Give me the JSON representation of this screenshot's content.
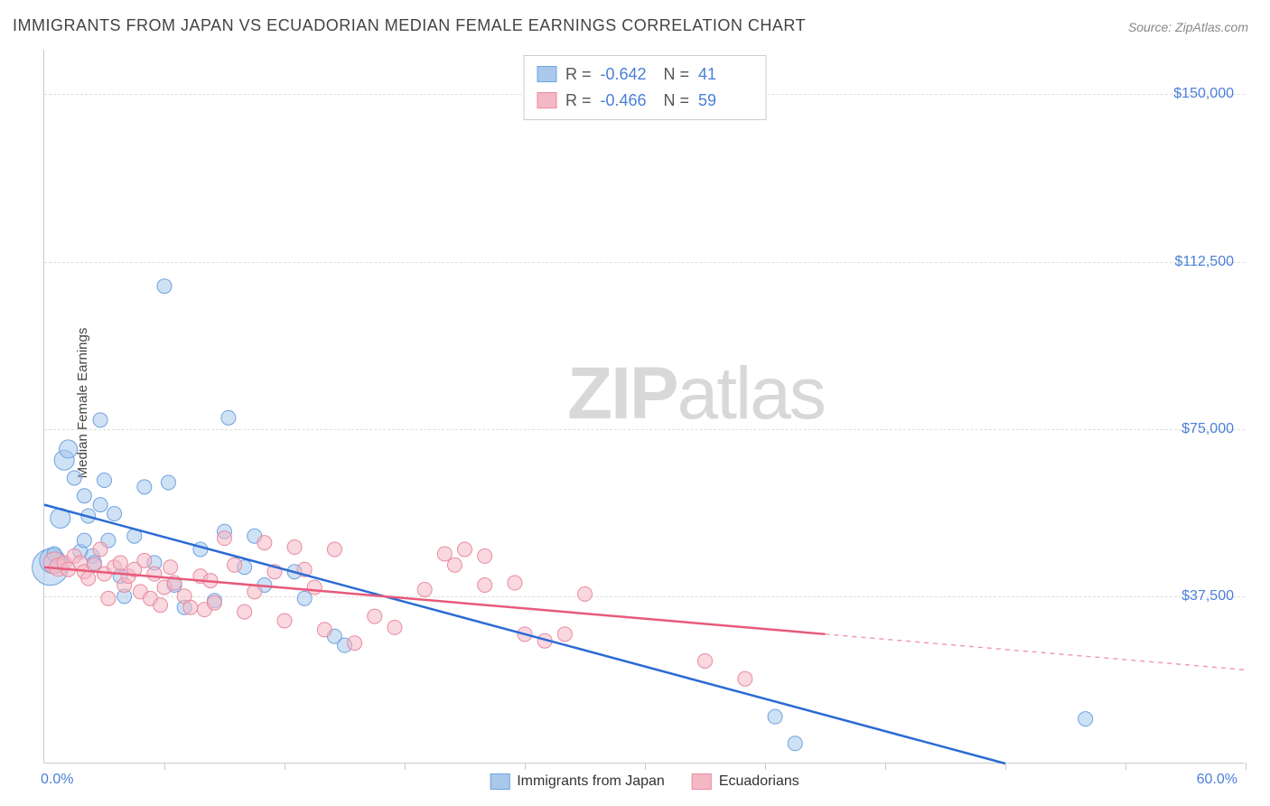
{
  "title": "IMMIGRANTS FROM JAPAN VS ECUADORIAN MEDIAN FEMALE EARNINGS CORRELATION CHART",
  "source_label": "Source: ZipAtlas.com",
  "ylabel": "Median Female Earnings",
  "watermark_bold": "ZIP",
  "watermark_light": "atlas",
  "chart": {
    "type": "scatter",
    "xlim": [
      0,
      60
    ],
    "ylim": [
      0,
      160000
    ],
    "x_start_label": "0.0%",
    "x_end_label": "60.0%",
    "xtick_positions": [
      6,
      12,
      18,
      24,
      30,
      36,
      42,
      48,
      54,
      60
    ],
    "ytick_values": [
      37500,
      75000,
      112500,
      150000
    ],
    "ytick_labels": [
      "$37,500",
      "$75,000",
      "$112,500",
      "$150,000"
    ],
    "grid_color": "#dddddd",
    "background_color": "#ffffff",
    "title_fontsize": 18,
    "label_fontsize": 15,
    "tick_fontsize": 16,
    "series": [
      {
        "name": "Immigrants from Japan",
        "color_fill": "#a8c8ec",
        "color_stroke": "#6fa3e0",
        "line_color": "#2b6bd4",
        "marker_opacity": 0.55,
        "marker_radius": 8,
        "R": "-0.642",
        "N": "41",
        "trend": {
          "x1": 0,
          "y1": 58000,
          "x2": 48,
          "y2": 0,
          "extend_x2": 48,
          "extend_y2": 0
        },
        "points": [
          {
            "x": 0.3,
            "y": 44000,
            "r": 20
          },
          {
            "x": 0.4,
            "y": 45500,
            "r": 14
          },
          {
            "x": 0.5,
            "y": 47000
          },
          {
            "x": 0.8,
            "y": 55000,
            "r": 11
          },
          {
            "x": 1.0,
            "y": 68000,
            "r": 11
          },
          {
            "x": 1.2,
            "y": 70500,
            "r": 10
          },
          {
            "x": 1.5,
            "y": 64000
          },
          {
            "x": 1.8,
            "y": 47500
          },
          {
            "x": 2.0,
            "y": 60000
          },
          {
            "x": 2.0,
            "y": 50000
          },
          {
            "x": 2.2,
            "y": 55500
          },
          {
            "x": 2.4,
            "y": 46500
          },
          {
            "x": 2.8,
            "y": 77000
          },
          {
            "x": 2.8,
            "y": 58000
          },
          {
            "x": 3.0,
            "y": 63500
          },
          {
            "x": 3.2,
            "y": 50000
          },
          {
            "x": 3.5,
            "y": 56000
          },
          {
            "x": 3.8,
            "y": 42000
          },
          {
            "x": 4.0,
            "y": 37500
          },
          {
            "x": 4.5,
            "y": 51000
          },
          {
            "x": 5.0,
            "y": 62000
          },
          {
            "x": 5.5,
            "y": 45000
          },
          {
            "x": 6.0,
            "y": 107000
          },
          {
            "x": 6.2,
            "y": 63000
          },
          {
            "x": 6.5,
            "y": 40000
          },
          {
            "x": 7.0,
            "y": 35000
          },
          {
            "x": 7.8,
            "y": 48000
          },
          {
            "x": 8.5,
            "y": 36500
          },
          {
            "x": 9.0,
            "y": 52000
          },
          {
            "x": 9.2,
            "y": 77500
          },
          {
            "x": 10.0,
            "y": 44000
          },
          {
            "x": 10.5,
            "y": 51000
          },
          {
            "x": 11.0,
            "y": 40000
          },
          {
            "x": 12.5,
            "y": 43000
          },
          {
            "x": 13.0,
            "y": 37000
          },
          {
            "x": 14.5,
            "y": 28500
          },
          {
            "x": 15.0,
            "y": 26500
          },
          {
            "x": 36.5,
            "y": 10500
          },
          {
            "x": 37.5,
            "y": 4500
          },
          {
            "x": 52.0,
            "y": 10000
          },
          {
            "x": 2.5,
            "y": 45000
          }
        ]
      },
      {
        "name": "Ecuadorians",
        "color_fill": "#f4b8c4",
        "color_stroke": "#e88ba0",
        "line_color": "#e85a7a",
        "marker_opacity": 0.55,
        "marker_radius": 8,
        "R": "-0.466",
        "N": "59",
        "trend": {
          "x1": 0,
          "y1": 44000,
          "x2": 39,
          "y2": 29000,
          "extend_x2": 60,
          "extend_y2": 21000
        },
        "points": [
          {
            "x": 0.5,
            "y": 45000,
            "r": 12
          },
          {
            "x": 0.7,
            "y": 44000,
            "r": 10
          },
          {
            "x": 1.0,
            "y": 45000
          },
          {
            "x": 1.2,
            "y": 43500
          },
          {
            "x": 1.5,
            "y": 46500
          },
          {
            "x": 1.8,
            "y": 45000
          },
          {
            "x": 2.0,
            "y": 43000
          },
          {
            "x": 2.2,
            "y": 41500
          },
          {
            "x": 2.5,
            "y": 44500
          },
          {
            "x": 2.8,
            "y": 48000
          },
          {
            "x": 3.0,
            "y": 42500
          },
          {
            "x": 3.2,
            "y": 37000
          },
          {
            "x": 3.5,
            "y": 44000
          },
          {
            "x": 3.8,
            "y": 45000
          },
          {
            "x": 4.0,
            "y": 40000
          },
          {
            "x": 4.2,
            "y": 42000
          },
          {
            "x": 4.5,
            "y": 43500
          },
          {
            "x": 4.8,
            "y": 38500
          },
          {
            "x": 5.0,
            "y": 45500
          },
          {
            "x": 5.3,
            "y": 37000
          },
          {
            "x": 5.5,
            "y": 42500
          },
          {
            "x": 5.8,
            "y": 35500
          },
          {
            "x": 6.0,
            "y": 39500
          },
          {
            "x": 6.3,
            "y": 44000
          },
          {
            "x": 6.5,
            "y": 40500
          },
          {
            "x": 7.0,
            "y": 37500
          },
          {
            "x": 7.3,
            "y": 35000
          },
          {
            "x": 7.8,
            "y": 42000
          },
          {
            "x": 8.0,
            "y": 34500
          },
          {
            "x": 8.3,
            "y": 41000
          },
          {
            "x": 8.5,
            "y": 36000
          },
          {
            "x": 9.0,
            "y": 50500
          },
          {
            "x": 9.5,
            "y": 44500
          },
          {
            "x": 10.0,
            "y": 34000
          },
          {
            "x": 10.5,
            "y": 38500
          },
          {
            "x": 11.0,
            "y": 49500
          },
          {
            "x": 11.5,
            "y": 43000
          },
          {
            "x": 12.0,
            "y": 32000
          },
          {
            "x": 12.5,
            "y": 48500
          },
          {
            "x": 13.0,
            "y": 43500
          },
          {
            "x": 13.5,
            "y": 39500
          },
          {
            "x": 14.0,
            "y": 30000
          },
          {
            "x": 14.5,
            "y": 48000
          },
          {
            "x": 15.5,
            "y": 27000
          },
          {
            "x": 16.5,
            "y": 33000
          },
          {
            "x": 17.5,
            "y": 30500
          },
          {
            "x": 19.0,
            "y": 39000
          },
          {
            "x": 20.0,
            "y": 47000
          },
          {
            "x": 20.5,
            "y": 44500
          },
          {
            "x": 21.0,
            "y": 48000
          },
          {
            "x": 22.0,
            "y": 46500
          },
          {
            "x": 22.0,
            "y": 40000
          },
          {
            "x": 23.5,
            "y": 40500
          },
          {
            "x": 24.0,
            "y": 29000
          },
          {
            "x": 25.0,
            "y": 27500
          },
          {
            "x": 26.0,
            "y": 29000
          },
          {
            "x": 27.0,
            "y": 38000
          },
          {
            "x": 33.0,
            "y": 23000
          },
          {
            "x": 35.0,
            "y": 19000
          }
        ]
      }
    ]
  },
  "legend": {
    "R_label": "R =",
    "N_label": "N ="
  }
}
